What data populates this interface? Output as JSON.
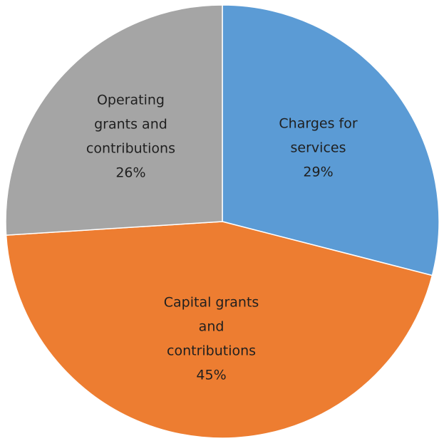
{
  "chart_data": {
    "type": "pie",
    "title": "",
    "start_angle": "12 o'clock",
    "direction": "clockwise",
    "legend": "none",
    "slices": [
      {
        "name": "Charges for services",
        "value": 29,
        "color": "#5b9bd5",
        "label_lines": [
          "Charges for",
          "services",
          "29%"
        ]
      },
      {
        "name": "Capital grants and contributions",
        "value": 45,
        "color": "#ed7d31",
        "label_lines": [
          "Capital grants",
          "and",
          "contributions",
          "45%"
        ]
      },
      {
        "name": "Operating grants and contributions",
        "value": 26,
        "color": "#a5a5a5",
        "label_lines": [
          "Operating",
          "grants and",
          "contributions",
          "26%"
        ]
      }
    ]
  }
}
